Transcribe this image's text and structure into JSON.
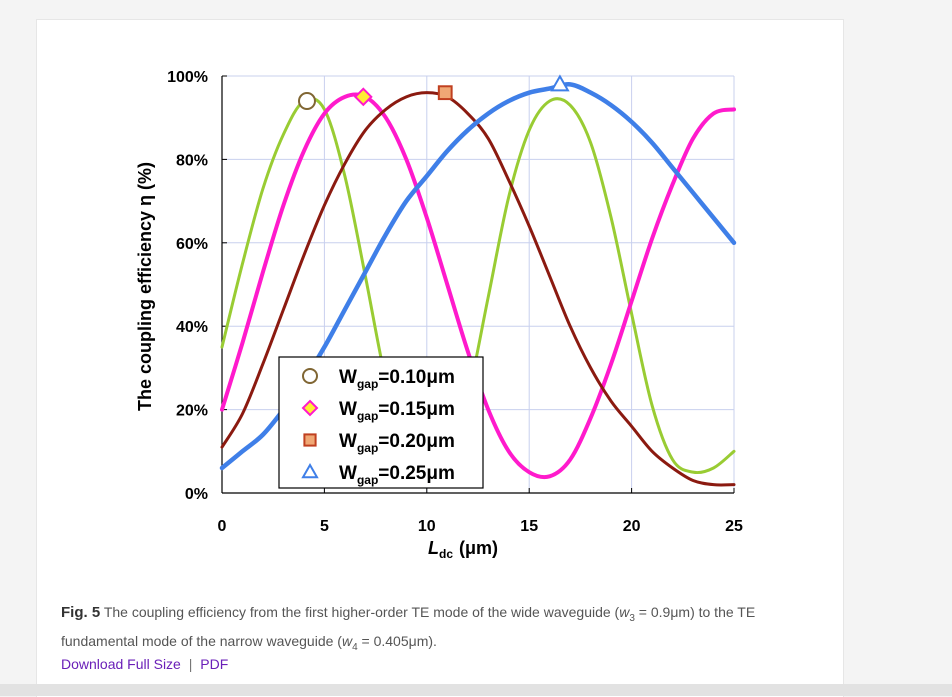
{
  "figure": {
    "label": "Fig. 5",
    "caption_part1": "The coupling efficiency from the first higher-order TE mode of the wide waveguide (",
    "caption_var1": "w",
    "caption_sub1": "3",
    "caption_part2": " = 0.9μm) to the TE fundamental mode of the narrow waveguide (",
    "caption_var2": "w",
    "caption_sub2": "4",
    "caption_part3": " = 0.405μm).",
    "download_label": "Download Full Size",
    "separator": "|",
    "pdf_label": "PDF"
  },
  "chart_data": {
    "type": "line",
    "title": "",
    "ylabel": "The coupling efficiency η (%)",
    "xlabel_main": "L",
    "xlabel_sub": "dc",
    "xlabel_unit": "(μm)",
    "xlim": [
      0,
      25
    ],
    "ylim": [
      0,
      100
    ],
    "x_ticks": [
      0,
      5,
      10,
      15,
      20,
      25
    ],
    "y_ticks": [
      0,
      20,
      40,
      60,
      80,
      100
    ],
    "y_tick_labels": [
      "0%",
      "20%",
      "40%",
      "60%",
      "80%",
      "100%"
    ],
    "grid": true,
    "legend_position": "bottom-center",
    "series": [
      {
        "name_main": "W",
        "name_sub": "gap",
        "name_value": "=0.10μm",
        "color": "#99cc33",
        "marker": "circle",
        "marker_color": "#ffffff",
        "marker_stroke": "#806633",
        "peak_x": 4.15,
        "peak_y": 94,
        "marker_x": 4.15,
        "x": [
          0,
          1,
          2,
          3,
          4,
          5,
          6,
          7,
          8,
          9,
          10,
          11,
          12,
          13,
          14,
          15,
          16,
          17,
          18,
          19,
          20,
          21,
          22,
          23,
          24,
          25
        ],
        "y": [
          35,
          55,
          73,
          86,
          94,
          92,
          76,
          52,
          27,
          10,
          3,
          7,
          23,
          47,
          71,
          87,
          94,
          93,
          84,
          66,
          43,
          21,
          8,
          5,
          6,
          10
        ]
      },
      {
        "name_main": "W",
        "name_sub": "gap",
        "name_value": "=0.15μm",
        "color": "#ff1acc",
        "marker": "diamond",
        "marker_color": "#ffee33",
        "marker_stroke": "#ff1acc",
        "peak_x": 6.9,
        "peak_y": 95,
        "marker_x": 6.9,
        "x": [
          0,
          1,
          2,
          3,
          4,
          5,
          6,
          7,
          8,
          9,
          10,
          11,
          12,
          13,
          14,
          15,
          16,
          17,
          18,
          19,
          20,
          21,
          22,
          23,
          24,
          25
        ],
        "y": [
          20,
          36,
          53,
          69,
          82,
          91,
          95,
          95,
          90,
          80,
          66,
          50,
          34,
          20,
          10,
          5,
          4,
          8,
          18,
          31,
          46,
          61,
          74,
          85,
          91,
          92
        ]
      },
      {
        "name_main": "W",
        "name_sub": "gap",
        "name_value": "=0.20μm",
        "color": "#8b1a10",
        "marker": "square",
        "marker_color": "#f0a875",
        "marker_stroke": "#c04020",
        "peak_x": 10.9,
        "peak_y": 96,
        "marker_x": 10.9,
        "x": [
          0,
          1,
          2,
          3,
          4,
          5,
          6,
          7,
          8,
          9,
          10,
          11,
          12,
          13,
          14,
          15,
          16,
          17,
          18,
          19,
          20,
          21,
          22,
          23,
          24,
          25
        ],
        "y": [
          11,
          19,
          31,
          44,
          57,
          69,
          79,
          87,
          92,
          95,
          96,
          95,
          91,
          85,
          75,
          64,
          52,
          40,
          30,
          22,
          16,
          10,
          6,
          3,
          2,
          2
        ]
      },
      {
        "name_main": "W",
        "name_sub": "gap",
        "name_value": "=0.25μm",
        "color": "#3f7fe8",
        "marker": "triangle",
        "marker_color": "#ffffff",
        "marker_stroke": "#3f7fe8",
        "peak_x": 16.5,
        "peak_y": 98,
        "marker_x": 16.5,
        "x": [
          0,
          1,
          2,
          3,
          4,
          5,
          6,
          7,
          8,
          9,
          10,
          11,
          12,
          13,
          14,
          15,
          16,
          17,
          18,
          19,
          20,
          21,
          22,
          23,
          24,
          25
        ],
        "y": [
          6,
          10,
          14,
          20,
          27,
          35,
          44,
          53,
          62,
          70,
          76,
          82,
          87,
          91,
          94,
          96,
          97,
          98,
          96,
          93,
          89,
          84,
          78,
          72,
          66,
          60
        ]
      }
    ]
  }
}
